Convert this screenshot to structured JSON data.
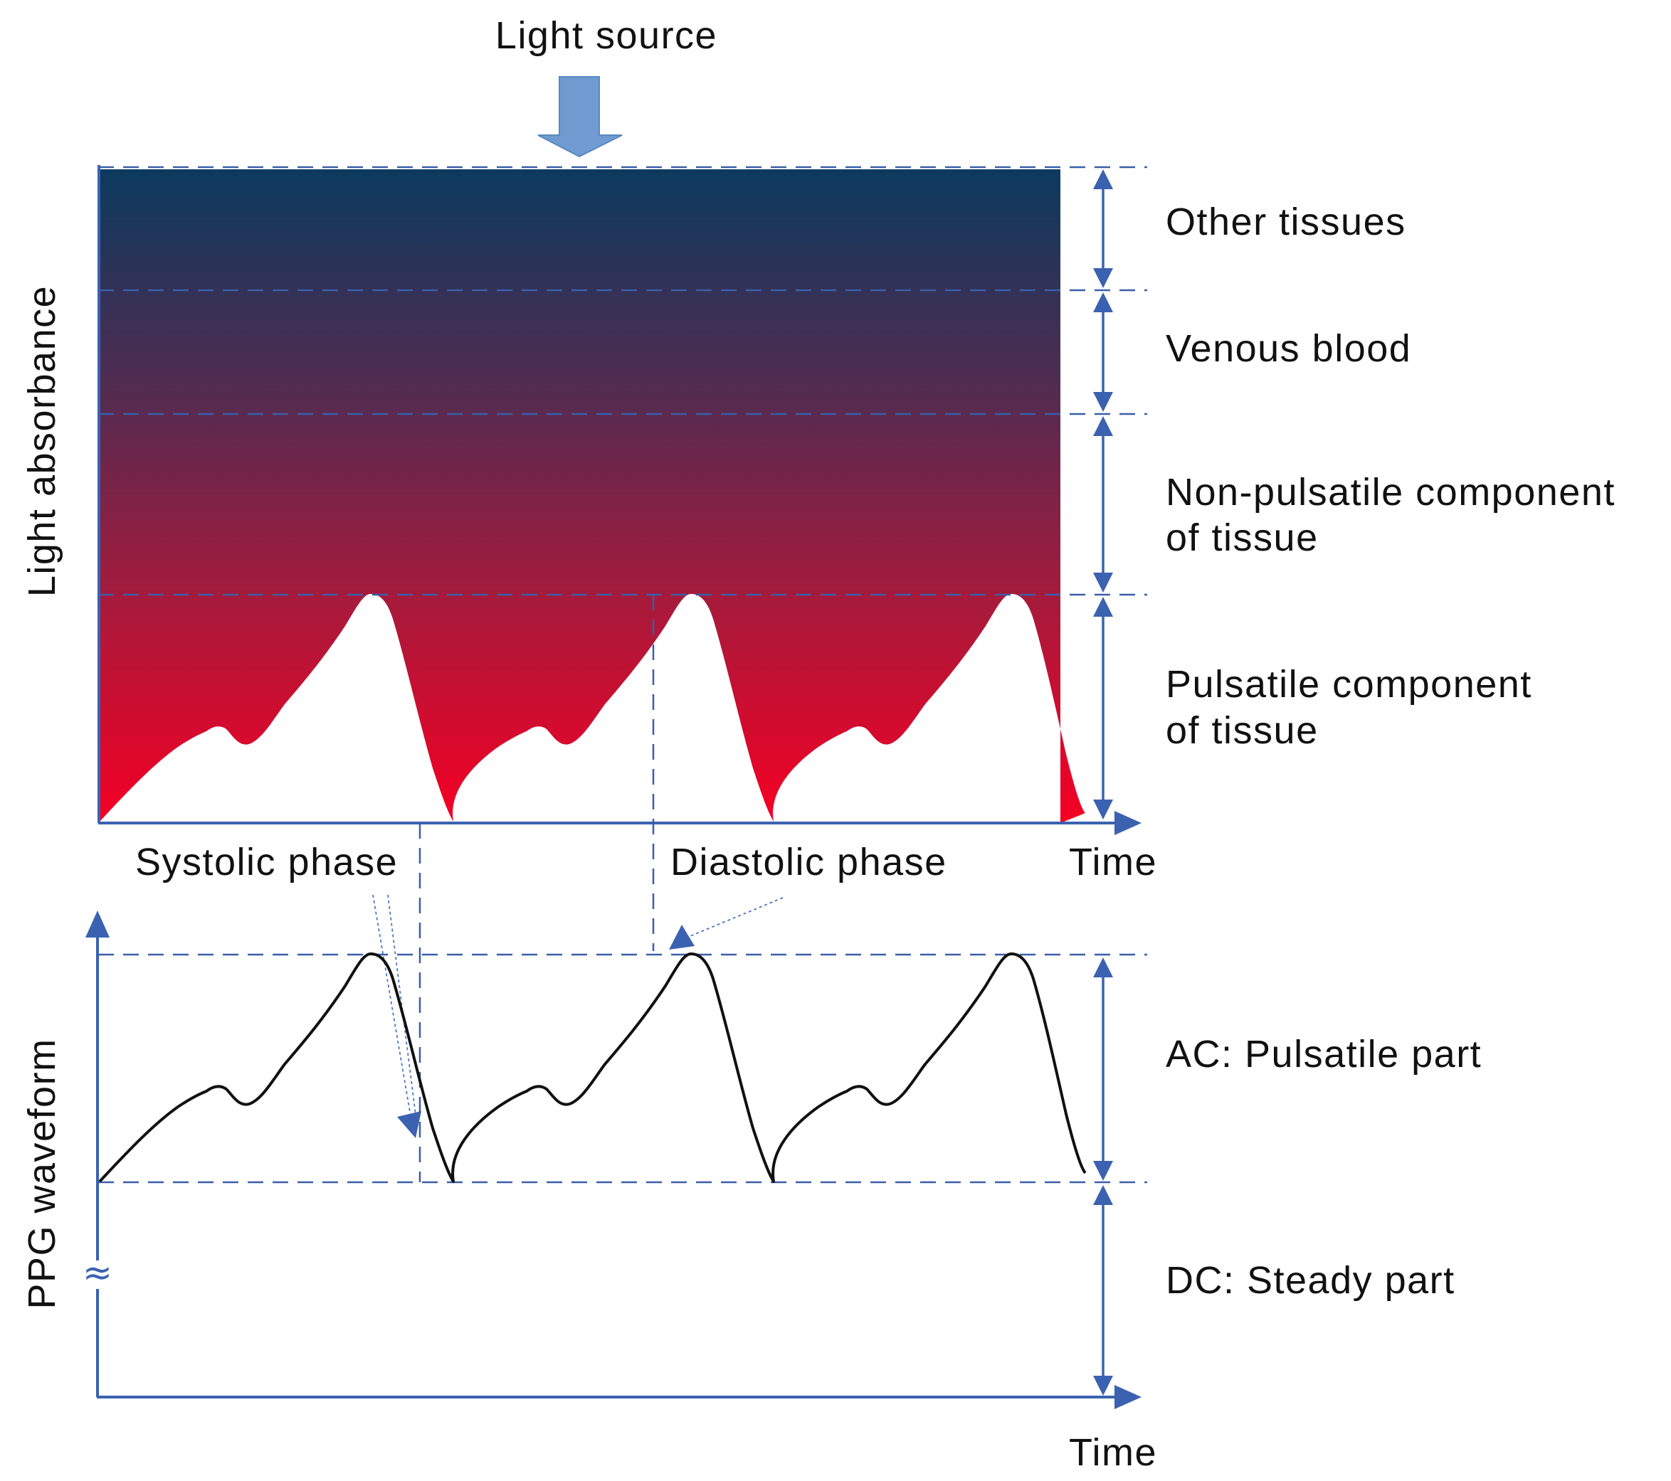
{
  "diagram": {
    "light_source_label": "Light source",
    "y_axis_top": "Light absorbance",
    "y_axis_bottom": "PPG waveform",
    "time_top": "Time",
    "time_bottom": "Time",
    "systolic": "Systolic phase",
    "diastolic": "Diastolic phase",
    "layers": [
      {
        "line1": "Other tissues",
        "line2": ""
      },
      {
        "line1": "Venous blood",
        "line2": ""
      },
      {
        "line1": "Non-pulsatile component",
        "line2": "of tissue"
      },
      {
        "line1": "Pulsatile component",
        "line2": "of tissue"
      }
    ],
    "ac_label": "AC: Pulsatile part",
    "dc_label": "DC: Steady part",
    "axis_break_symbol": "≈",
    "colors": {
      "tissue_top": "#0b3a5e",
      "tissue_bottom": "#f50024",
      "arrow_fill": "#6f9bd1",
      "guides": "#3a62b0",
      "waveform": "#111111"
    }
  }
}
